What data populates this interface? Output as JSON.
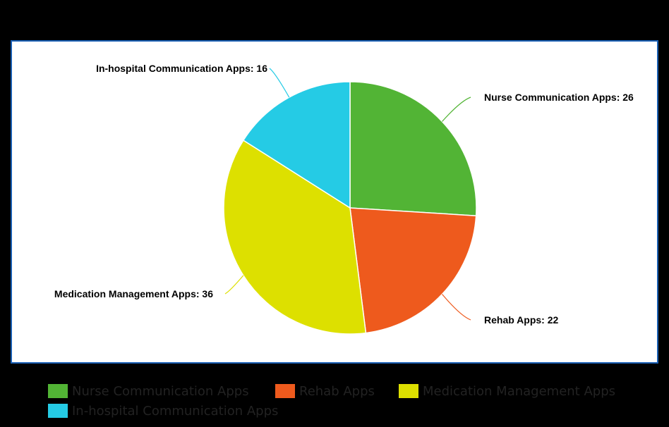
{
  "chart_data": {
    "type": "pie",
    "title": "",
    "slices": [
      {
        "label": "Nurse Communication Apps",
        "value": 26,
        "display": "Nurse Communication Apps: 26",
        "color": "#52b435"
      },
      {
        "label": "Rehab Apps",
        "value": 22,
        "display": "Rehab Apps: 22",
        "color": "#ee5a1d"
      },
      {
        "label": "Medication Management Apps",
        "value": 36,
        "display": "Medication Management Apps: 36",
        "color": "#dde000"
      },
      {
        "label": "In-hospital Communication Apps",
        "value": 16,
        "display": "In-hospital Communication Apps: 16",
        "color": "#25cbe5"
      }
    ],
    "start_angle": "12 o'clock",
    "direction": "clockwise",
    "legend_position": "bottom",
    "frame_border_color": "#1a5fb4",
    "background_color": "#000000"
  },
  "legend": {
    "items": [
      {
        "label": "Nurse Communication Apps",
        "color": "#52b435"
      },
      {
        "label": "Rehab Apps",
        "color": "#ee5a1d"
      },
      {
        "label": "Medication Management Apps",
        "color": "#dde000"
      },
      {
        "label": "In-hospital Communication Apps",
        "color": "#25cbe5"
      }
    ]
  }
}
